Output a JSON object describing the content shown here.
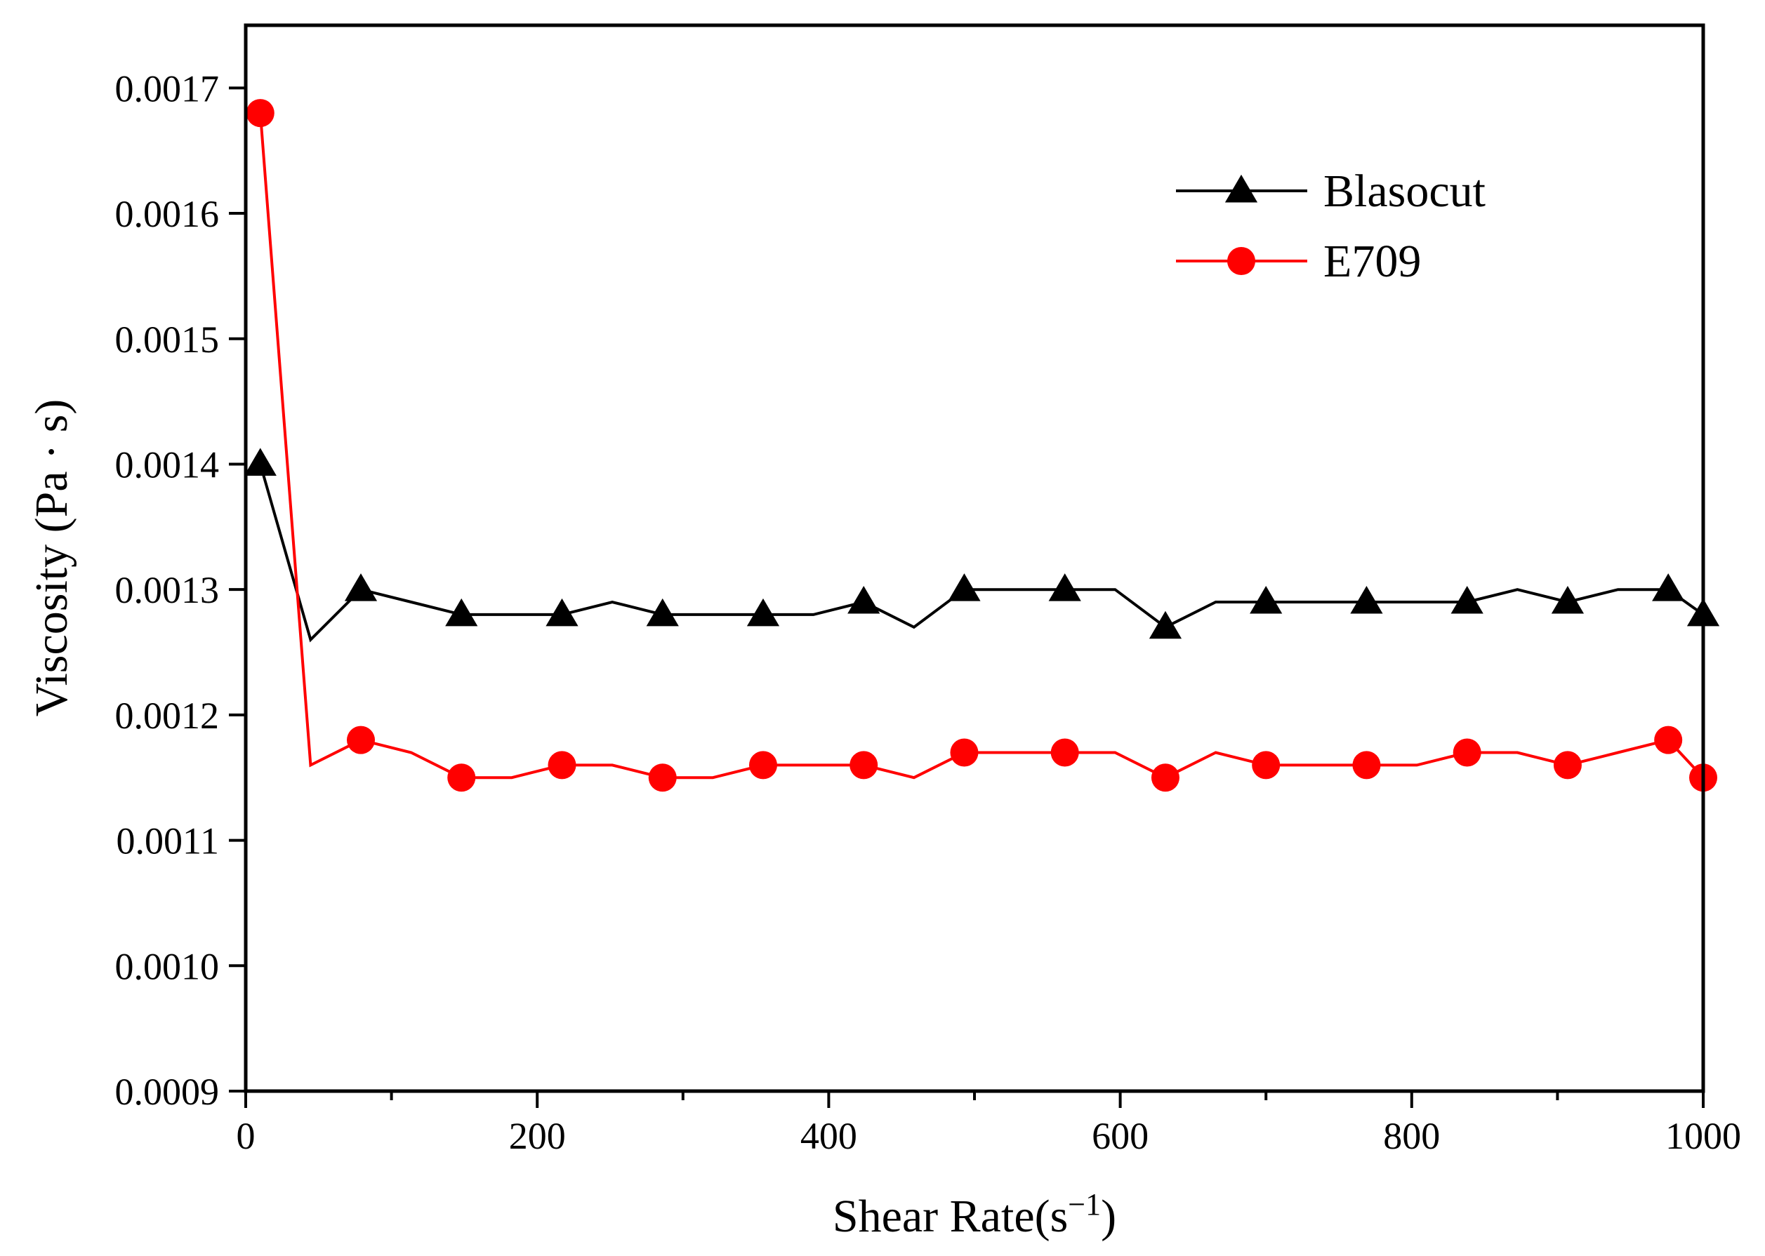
{
  "chart_data": {
    "type": "line",
    "title": "",
    "xlabel": "Shear Rate(s",
    "xlabel_superscript": "−1",
    "xlabel_suffix": ")",
    "ylabel": "Viscosity (Pa · s)",
    "xlim": [
      0,
      1000
    ],
    "ylim": [
      0.0009,
      0.00175
    ],
    "x_ticks": [
      "0",
      "200",
      "400",
      "600",
      "800",
      "1000"
    ],
    "y_ticks": [
      "0.0009",
      "0.0010",
      "0.0011",
      "0.0012",
      "0.0013",
      "0.0014",
      "0.0015",
      "0.0016",
      "0.0017"
    ],
    "legend_position": "top-right",
    "grid": false,
    "series": [
      {
        "name": "Blasocut",
        "color": "#000000",
        "marker": "triangle",
        "x": [
          10,
          44.5,
          79,
          113.5,
          148,
          182.5,
          217,
          251.5,
          286,
          320.5,
          355,
          389.5,
          424,
          458.5,
          493,
          527.5,
          562,
          596.5,
          631,
          665.5,
          700,
          734.5,
          769,
          803.5,
          838,
          872.5,
          907,
          941.5,
          976,
          1000
        ],
        "y": [
          0.0014,
          0.00126,
          0.0013,
          0.00129,
          0.00128,
          0.00128,
          0.00128,
          0.00129,
          0.00128,
          0.00128,
          0.00128,
          0.00128,
          0.00129,
          0.00127,
          0.0013,
          0.0013,
          0.0013,
          0.0013,
          0.00127,
          0.00129,
          0.00129,
          0.00129,
          0.00129,
          0.00129,
          0.00129,
          0.0013,
          0.00129,
          0.0013,
          0.0013,
          0.00128
        ],
        "marked": [
          true,
          false,
          true,
          false,
          true,
          false,
          true,
          false,
          true,
          false,
          true,
          false,
          true,
          false,
          true,
          false,
          true,
          false,
          true,
          false,
          true,
          false,
          true,
          false,
          true,
          false,
          true,
          false,
          true,
          true
        ]
      },
      {
        "name": "E709",
        "color": "#ff0000",
        "marker": "circle",
        "x": [
          10,
          44.5,
          79,
          113.5,
          148,
          182.5,
          217,
          251.5,
          286,
          320.5,
          355,
          389.5,
          424,
          458.5,
          493,
          527.5,
          562,
          596.5,
          631,
          665.5,
          700,
          734.5,
          769,
          803.5,
          838,
          872.5,
          907,
          941.5,
          976,
          1000
        ],
        "y": [
          0.00168,
          0.00116,
          0.00118,
          0.00117,
          0.00115,
          0.00115,
          0.00116,
          0.00116,
          0.00115,
          0.00115,
          0.00116,
          0.00116,
          0.00116,
          0.00115,
          0.00117,
          0.00117,
          0.00117,
          0.00117,
          0.00115,
          0.00117,
          0.00116,
          0.00116,
          0.00116,
          0.00116,
          0.00117,
          0.00117,
          0.00116,
          0.00117,
          0.00118,
          0.00115
        ],
        "marked": [
          true,
          false,
          true,
          false,
          true,
          false,
          true,
          false,
          true,
          false,
          true,
          false,
          true,
          false,
          true,
          false,
          true,
          false,
          true,
          false,
          true,
          false,
          true,
          false,
          true,
          false,
          true,
          false,
          true,
          true
        ]
      }
    ]
  }
}
